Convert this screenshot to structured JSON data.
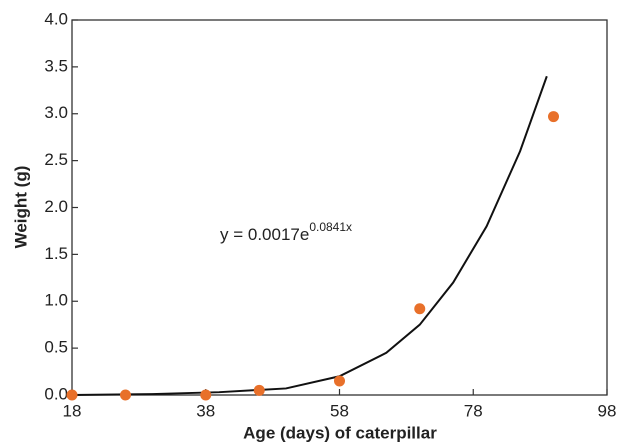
{
  "chart_data": {
    "type": "scatter",
    "xlabel": "Age (days) of caterpillar",
    "ylabel": "Weight (g)",
    "x": [
      18,
      26,
      38,
      46,
      58,
      70,
      90
    ],
    "values": [
      0,
      0,
      0,
      0.05,
      0.15,
      0.92,
      2.97
    ],
    "color": "#e8702a",
    "trendline": {
      "color": "#111111",
      "x": [
        18,
        30,
        40,
        50,
        58,
        65,
        70,
        75,
        80,
        85,
        89
      ],
      "values": [
        0,
        0.01,
        0.03,
        0.07,
        0.2,
        0.45,
        0.75,
        1.2,
        1.8,
        2.6,
        3.4
      ]
    },
    "annotation": {
      "text": "y = 0.0017e",
      "exponent": "0.0841x"
    },
    "xlim": [
      18,
      98
    ],
    "xticks": [
      18,
      38,
      58,
      78,
      98
    ],
    "ylim": [
      0,
      4
    ],
    "yticks": [
      {
        "value": 0,
        "label": "0.0"
      },
      0.5,
      {
        "value": 1,
        "label": "1.0"
      },
      1.5,
      {
        "value": 2,
        "label": "2.0"
      },
      2.5,
      {
        "value": 3,
        "label": "3.0"
      },
      3.5,
      {
        "value": 4,
        "label": "4.0"
      }
    ]
  }
}
